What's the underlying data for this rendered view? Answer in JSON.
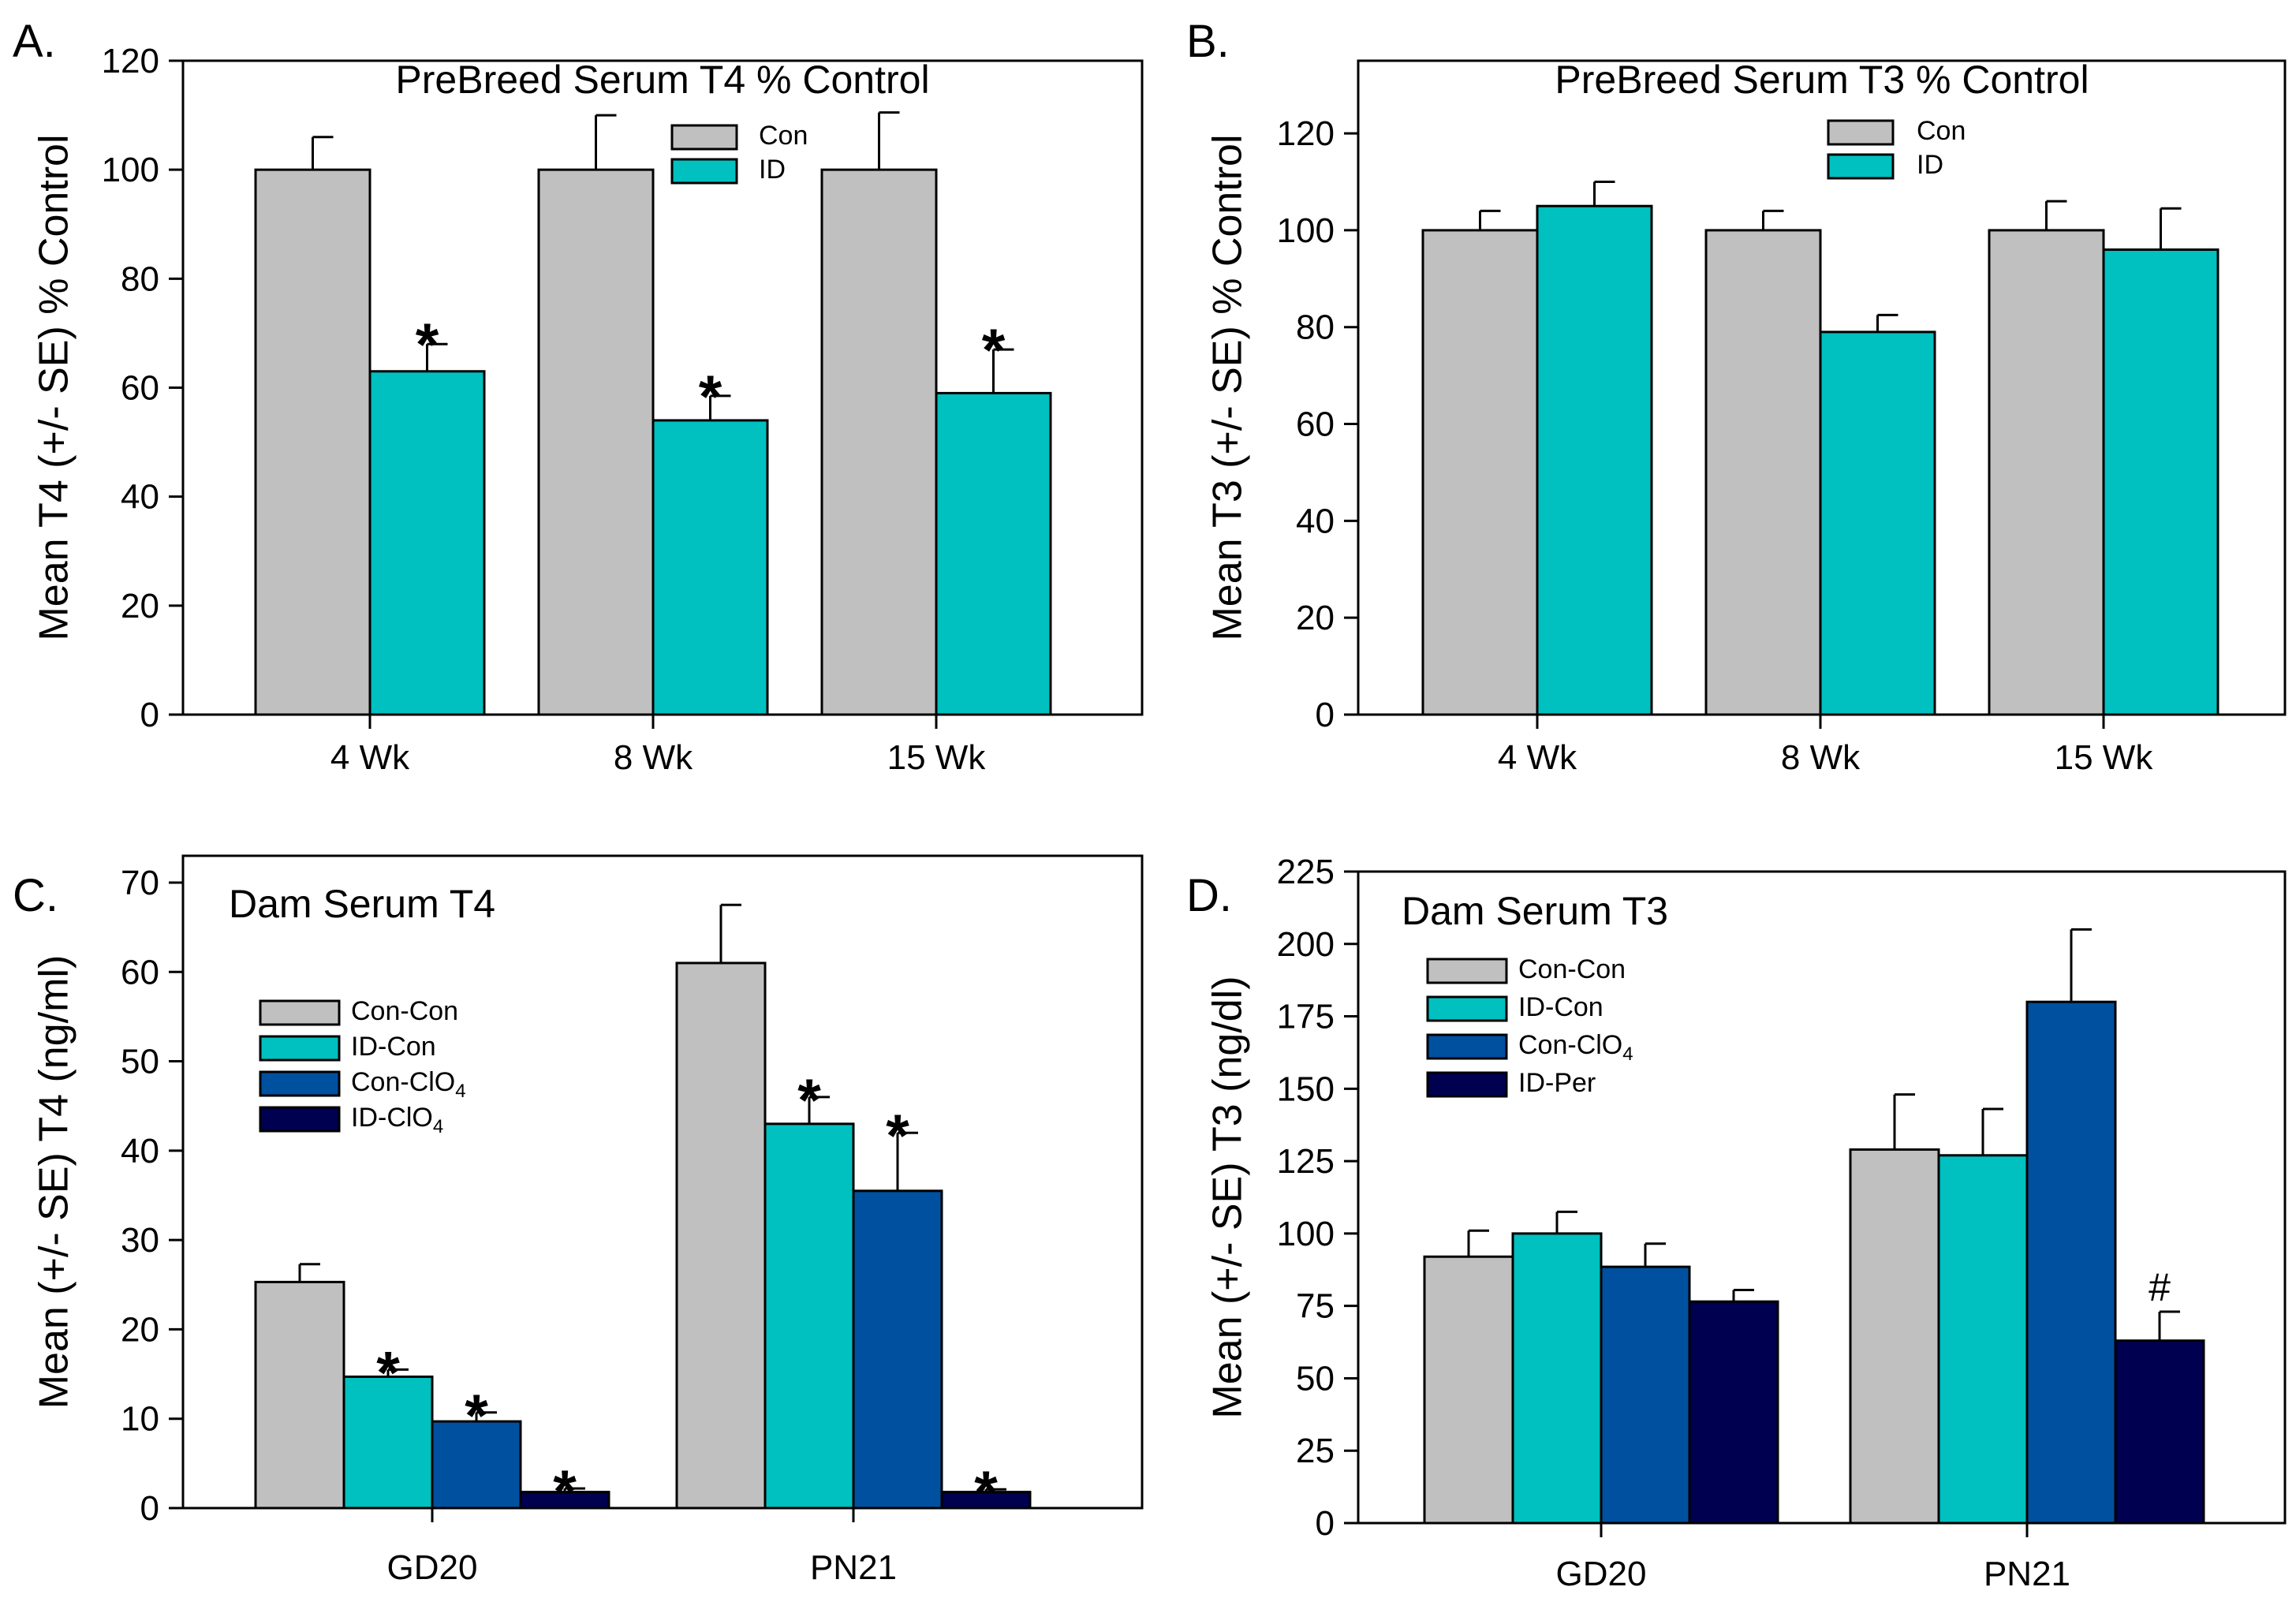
{
  "panels": [
    {
      "label": "A.",
      "chart_data": {
        "type": "bar",
        "title": "PreBreed Serum T4 % Control",
        "xlabel": "",
        "ylabel": "Mean T4  (+/- SE) % Control",
        "categories": [
          "4 Wk",
          "8 Wk",
          "15 Wk"
        ],
        "ylim": [
          0,
          120
        ],
        "yticks": [
          0,
          20,
          40,
          60,
          80,
          100,
          120
        ],
        "series": [
          {
            "name": "Con",
            "color": "#c0c0c0",
            "values": [
              100,
              100,
              100
            ],
            "errors": [
              6,
              10,
              10.5
            ],
            "marks": [
              "",
              "",
              ""
            ]
          },
          {
            "name": "ID",
            "color": "#00c0c0",
            "values": [
              63,
              54,
              59
            ],
            "errors": [
              5,
              4.5,
              8
            ],
            "marks": [
              "*",
              "*",
              "*"
            ]
          }
        ],
        "legend": "top-right"
      }
    },
    {
      "label": "B.",
      "chart_data": {
        "type": "bar",
        "title": "PreBreed Serum T3 % Control",
        "xlabel": "",
        "ylabel": "Mean T3  (+/- SE) % Control",
        "categories": [
          "4 Wk",
          "8 Wk",
          "15 Wk"
        ],
        "ylim": [
          0,
          135
        ],
        "yticks": [
          0,
          20,
          40,
          60,
          80,
          100,
          120
        ],
        "series": [
          {
            "name": "Con",
            "color": "#c0c0c0",
            "values": [
              100,
              100,
              100
            ],
            "errors": [
              4,
              4,
              6
            ],
            "marks": [
              "",
              "",
              ""
            ]
          },
          {
            "name": "ID",
            "color": "#00c0c0",
            "values": [
              105,
              79,
              96
            ],
            "errors": [
              5,
              3.5,
              8.5
            ],
            "marks": [
              "",
              "",
              ""
            ]
          }
        ],
        "legend": "top-right"
      }
    },
    {
      "label": "C.",
      "chart_data": {
        "type": "bar",
        "title": "Dam Serum T4",
        "xlabel": "",
        "ylabel": "Mean (+/- SE) T4 (ng/ml)",
        "categories": [
          "GD20",
          "PN21"
        ],
        "ylim": [
          0,
          73
        ],
        "yticks": [
          0,
          10,
          20,
          30,
          40,
          50,
          60,
          70
        ],
        "series": [
          {
            "name": "Con-Con",
            "color": "#c0c0c0",
            "values": [
              25.3,
              61
            ],
            "errors": [
              2,
              6.5
            ],
            "marks": [
              "",
              ""
            ]
          },
          {
            "name": "ID-Con",
            "color": "#00c0c0",
            "values": [
              14.7,
              43
            ],
            "errors": [
              0.8,
              3
            ],
            "marks": [
              "*",
              "*"
            ]
          },
          {
            "name": "Con-ClO4",
            "color": "#0050a0",
            "values": [
              9.7,
              35.5
            ],
            "errors": [
              1,
              6.5
            ],
            "marks": [
              "*",
              "*"
            ]
          },
          {
            "name": "ID-ClO4",
            "color": "#000050",
            "values": [
              1.8,
              1.8
            ],
            "errors": [
              0.4,
              0.3
            ],
            "marks": [
              "*",
              "*"
            ]
          }
        ],
        "legend": "left"
      }
    },
    {
      "label": "D.",
      "chart_data": {
        "type": "bar",
        "title": "Dam Serum T3",
        "xlabel": "",
        "ylabel": "Mean (+/- SE) T3 (ng/dl)",
        "categories": [
          "GD20",
          "PN21"
        ],
        "ylim": [
          0,
          225
        ],
        "yticks": [
          0,
          25,
          50,
          75,
          100,
          125,
          150,
          175,
          200,
          225
        ],
        "series": [
          {
            "name": "Con-Con",
            "color": "#c0c0c0",
            "values": [
              92,
              129
            ],
            "errors": [
              9,
              19
            ],
            "marks": [
              "",
              ""
            ]
          },
          {
            "name": "ID-Con",
            "color": "#00c0c0",
            "values": [
              100,
              127
            ],
            "errors": [
              7.5,
              16
            ],
            "marks": [
              "",
              ""
            ]
          },
          {
            "name": "Con-ClO4",
            "color": "#0050a0",
            "values": [
              88.5,
              180
            ],
            "errors": [
              8,
              25
            ],
            "marks": [
              "",
              ""
            ]
          },
          {
            "name": "ID-Per",
            "color": "#000050",
            "values": [
              76.5,
              63
            ],
            "errors": [
              4,
              10
            ],
            "marks": [
              "",
              "#"
            ]
          }
        ],
        "legend": "top-left"
      }
    }
  ]
}
